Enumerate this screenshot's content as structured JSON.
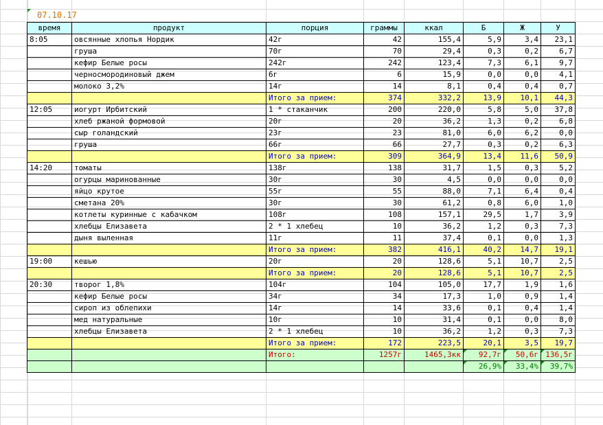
{
  "date": "07.10.17",
  "headers": {
    "time": "время",
    "product": "продукт",
    "portion": "порция",
    "grams": "граммы",
    "kcal": "ккал",
    "b": "Б",
    "zh": "Ж",
    "u": "У"
  },
  "subtotal_label": "Итого за прием:",
  "meals": [
    {
      "time": "8:05",
      "items": [
        {
          "product": "овсянные хлопья Нордик",
          "portion": "42г",
          "grams": "42",
          "kcal": "155,4",
          "b": "5,9",
          "zh": "3,4",
          "u": "23,1"
        },
        {
          "product": "груша",
          "portion": "70г",
          "grams": "70",
          "kcal": "29,4",
          "b": "0,3",
          "zh": "0,2",
          "u": "6,7"
        },
        {
          "product": "кефир Белые росы",
          "portion": "242г",
          "grams": "242",
          "kcal": "123,4",
          "b": "7,3",
          "zh": "6,1",
          "u": "9,7"
        },
        {
          "product": "черносмородиновый джем",
          "portion": "6г",
          "grams": "6",
          "kcal": "15,9",
          "b": "0,0",
          "zh": "0,0",
          "u": "4,1"
        },
        {
          "product": "молоко 3,2%",
          "portion": "14г",
          "grams": "14",
          "kcal": "8,1",
          "b": "0,4",
          "zh": "0,4",
          "u": "0,7"
        }
      ],
      "subtotal": {
        "grams": "374",
        "kcal": "332,2",
        "b": "13,9",
        "zh": "10,1",
        "u": "44,3"
      }
    },
    {
      "time": "12:05",
      "items": [
        {
          "product": "иогурт Ирбитский",
          "portion": "1 * стаканчик",
          "grams": "200",
          "kcal": "220,0",
          "b": "5,8",
          "zh": "5,0",
          "u": "37,8"
        },
        {
          "product": "хлеб ржаной формовой",
          "portion": "20г",
          "grams": "20",
          "kcal": "36,2",
          "b": "1,3",
          "zh": "0,2",
          "u": "6,8"
        },
        {
          "product": "сыр голандский",
          "portion": "23г",
          "grams": "23",
          "kcal": "81,0",
          "b": "6,0",
          "zh": "6,2",
          "u": "0,0"
        },
        {
          "product": "груша",
          "portion": "66г",
          "grams": "66",
          "kcal": "27,7",
          "b": "0,3",
          "zh": "0,2",
          "u": "6,3"
        }
      ],
      "subtotal": {
        "grams": "309",
        "kcal": "364,9",
        "b": "13,4",
        "zh": "11,6",
        "u": "50,9"
      }
    },
    {
      "time": "14:20",
      "items": [
        {
          "product": "томаты",
          "portion": "138г",
          "grams": "138",
          "kcal": "31,7",
          "b": "1,5",
          "zh": "0,3",
          "u": "5,2"
        },
        {
          "product": "огурцы маринованные",
          "portion": "30г",
          "grams": "30",
          "kcal": "4,5",
          "b": "0,0",
          "zh": "0,0",
          "u": "0,0"
        },
        {
          "product": "яйцо крутое",
          "portion": "55г",
          "grams": "55",
          "kcal": "88,0",
          "b": "7,1",
          "zh": "6,4",
          "u": "0,4"
        },
        {
          "product": "сметана 20%",
          "portion": "30г",
          "grams": "30",
          "kcal": "61,2",
          "b": "0,8",
          "zh": "6,0",
          "u": "1,0"
        },
        {
          "product": "котлеты куринные с кабачком",
          "portion": "108г",
          "grams": "108",
          "kcal": "157,1",
          "b": "29,5",
          "zh": "1,7",
          "u": "3,9"
        },
        {
          "product": "хлебцы Елизавета",
          "portion": "2 * 1 хлебец",
          "grams": "10",
          "kcal": "36,2",
          "b": "1,2",
          "zh": "0,3",
          "u": "7,3"
        },
        {
          "product": "дыня выленная",
          "portion": "11г",
          "grams": "11",
          "kcal": "37,4",
          "b": "0,1",
          "zh": "0,0",
          "u": "1,3"
        }
      ],
      "subtotal": {
        "grams": "382",
        "kcal": "416,1",
        "b": "40,2",
        "zh": "14,7",
        "u": "19,1"
      }
    },
    {
      "time": "19:00",
      "items": [
        {
          "product": "кешью",
          "portion": "20г",
          "grams": "20",
          "kcal": "128,6",
          "b": "5,1",
          "zh": "10,7",
          "u": "2,5"
        }
      ],
      "subtotal": {
        "grams": "20",
        "kcal": "128,6",
        "b": "5,1",
        "zh": "10,7",
        "u": "2,5"
      }
    },
    {
      "time": "20:30",
      "items": [
        {
          "product": "творог 1,8%",
          "portion": "104г",
          "grams": "104",
          "kcal": "105,0",
          "b": "17,7",
          "zh": "1,9",
          "u": "1,6"
        },
        {
          "product": "кефир Белые росы",
          "portion": "34г",
          "grams": "34",
          "kcal": "17,3",
          "b": "1,0",
          "zh": "0,9",
          "u": "1,4"
        },
        {
          "product": "сироп из облепихи",
          "portion": "14г",
          "grams": "14",
          "kcal": "33,6",
          "b": "0,1",
          "zh": "0,4",
          "u": "1,4"
        },
        {
          "product": "мед натуральные",
          "portion": "10г",
          "grams": "10",
          "kcal": "31,4",
          "b": "0,1",
          "zh": "0,0",
          "u": "8,0"
        },
        {
          "product": "хлебцы Елизавета",
          "portion": "2 * 1 хлебец",
          "grams": "10",
          "kcal": "36,2",
          "b": "1,2",
          "zh": "0,3",
          "u": "7,3"
        }
      ],
      "subtotal": {
        "grams": "172",
        "kcal": "223,5",
        "b": "20,1",
        "zh": "3,5",
        "u": "19,7"
      }
    }
  ],
  "total": {
    "label": "Итого:",
    "grams": "1257г",
    "kcal": "1465,3кк",
    "b": "92,7г",
    "zh": "50,6г",
    "u": "136,5г"
  },
  "percent": {
    "b": "26,9%",
    "zh": "33,4%",
    "u": "39,7%"
  },
  "colors": {
    "header_bg": "#ccffff",
    "subtotal_bg": "#ffff99",
    "subtotal_text": "#0000cc",
    "total_bg": "#ccffcc",
    "total_text": "#cc0000",
    "percent_text": "#007a00",
    "date_text": "#e07000"
  }
}
